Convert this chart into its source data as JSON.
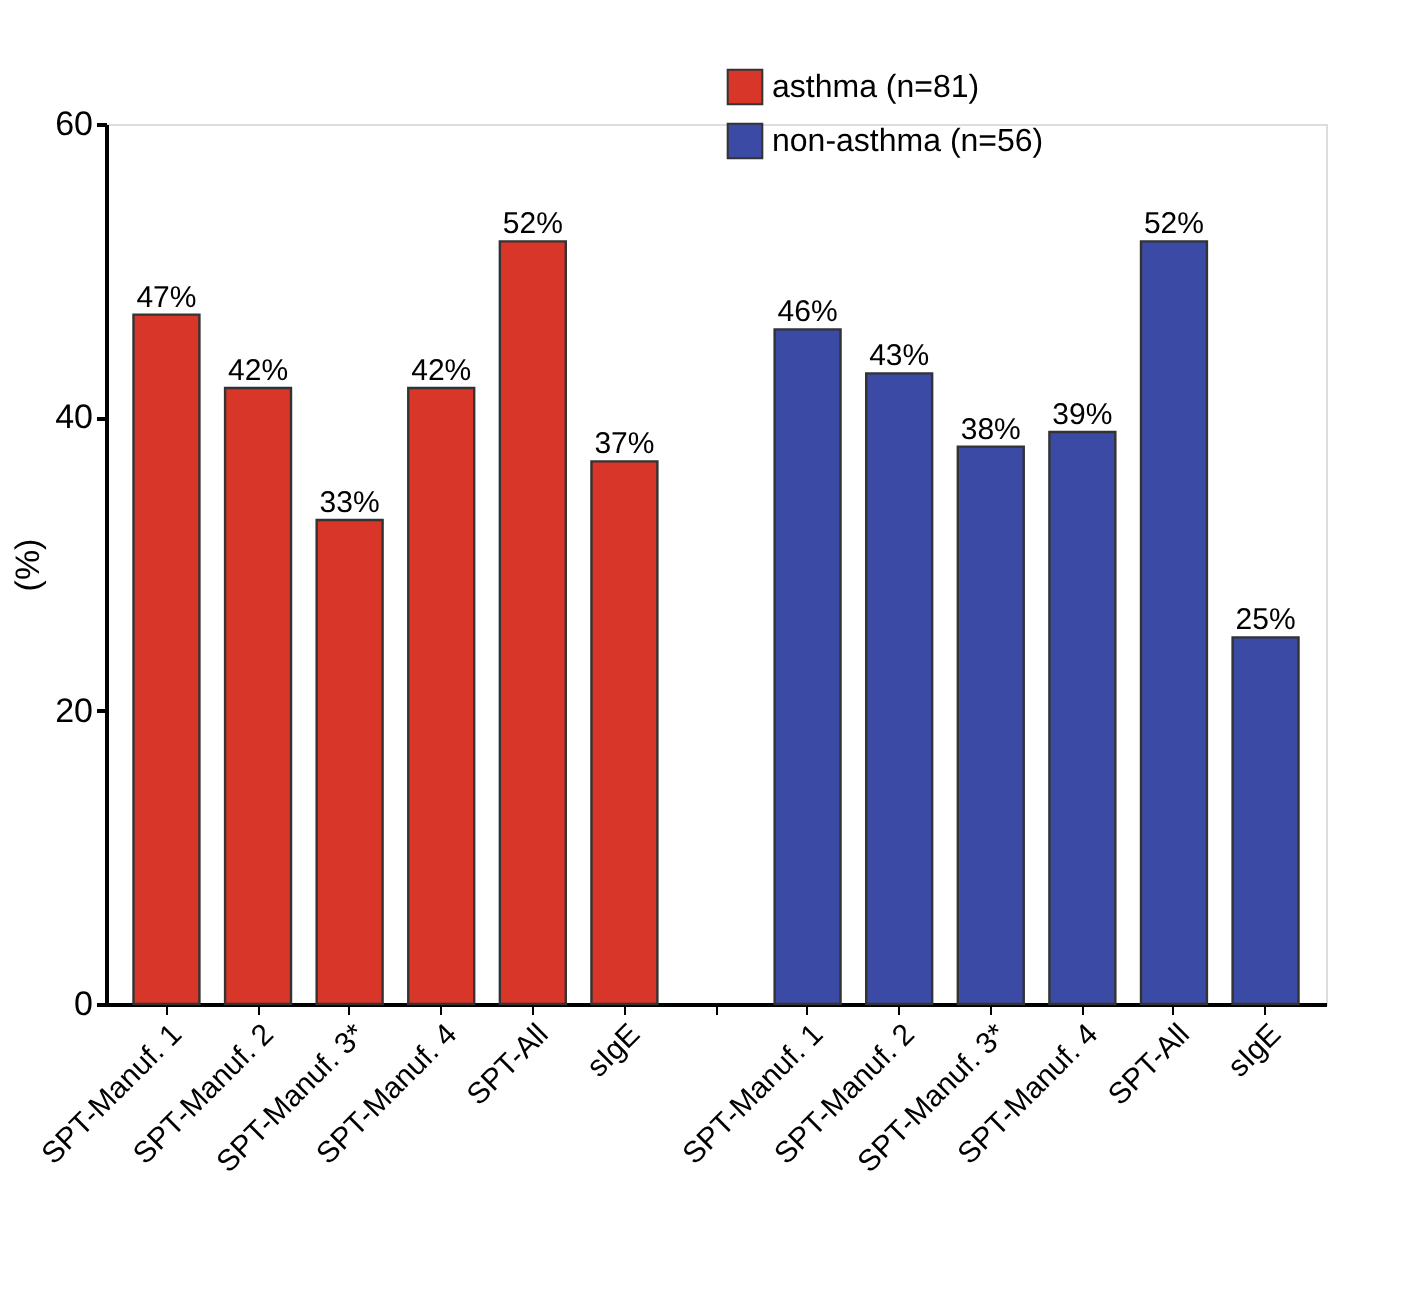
{
  "chart_data": {
    "type": "bar",
    "ylabel": "(%)",
    "categories": [
      "SPT-Manuf. 1",
      "SPT-Manuf. 2",
      "SPT-Manuf. 3*",
      "SPT-Manuf. 4",
      "SPT-All",
      "sIgE",
      null,
      "SPT-Manuf. 1",
      "SPT-Manuf. 2",
      "SPT-Manuf. 3*",
      "SPT-Manuf. 4",
      "SPT-All",
      "sIgE"
    ],
    "series": [
      {
        "name": "asthma (n=81)",
        "color": "#d9362a",
        "values": [
          47,
          42,
          33,
          42,
          52,
          37,
          null,
          null,
          null,
          null,
          null,
          null,
          null
        ],
        "value_labels": [
          "47%",
          "42%",
          "33%",
          "42%",
          "52%",
          "37%",
          null,
          null,
          null,
          null,
          null,
          null,
          null
        ]
      },
      {
        "name": "non-asthma (n=56)",
        "color": "#3a4aa5",
        "values": [
          null,
          null,
          null,
          null,
          null,
          null,
          null,
          46,
          43,
          38,
          39,
          52,
          25
        ],
        "value_labels": [
          null,
          null,
          null,
          null,
          null,
          null,
          null,
          "46%",
          "43%",
          "38%",
          "39%",
          "52%",
          "25%"
        ]
      }
    ],
    "ylim": [
      0,
      60
    ],
    "yticks": [
      0,
      20,
      40,
      60
    ],
    "grid": false,
    "legend": "top right"
  }
}
